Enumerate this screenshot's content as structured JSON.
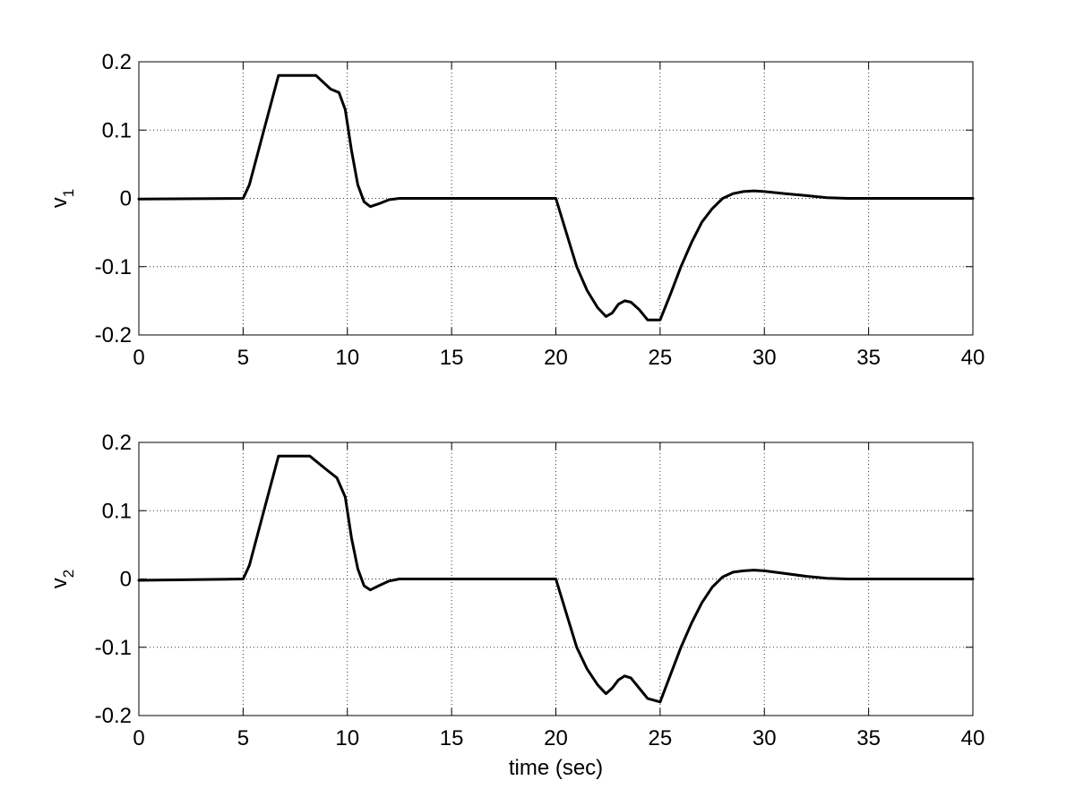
{
  "chart_data": [
    {
      "type": "line",
      "title": "",
      "xlabel": "",
      "ylabel": "v",
      "ylabel_subscript": "1",
      "xlim": [
        0,
        40
      ],
      "ylim": [
        -0.2,
        0.2
      ],
      "xticks": [
        0,
        5,
        10,
        15,
        20,
        25,
        30,
        35,
        40
      ],
      "yticks": [
        0.2,
        0.1,
        0,
        -0.1,
        -0.2
      ],
      "xtick_labels": [
        "0",
        "5",
        "10",
        "15",
        "20",
        "25",
        "30",
        "35",
        "40"
      ],
      "ytick_labels": [
        "0.2",
        "0.1",
        "0",
        "-0.1",
        "-0.2"
      ],
      "grid": true,
      "series": [
        {
          "color": "#000000",
          "x": [
            0,
            5,
            5.3,
            6,
            6.7,
            7.5,
            8.5,
            9.2,
            9.6,
            9.9,
            10.2,
            10.5,
            10.8,
            11.1,
            11.5,
            12,
            12.5,
            15,
            20,
            20.5,
            21,
            21.5,
            22,
            22.4,
            22.7,
            23,
            23.3,
            23.6,
            24,
            24.4,
            25,
            25.5,
            26,
            26.5,
            27,
            27.5,
            28,
            28.5,
            29,
            29.5,
            30,
            31,
            32,
            33,
            34,
            35,
            40
          ],
          "y": [
            -0.001,
            0,
            0.02,
            0.1,
            0.18,
            0.18,
            0.18,
            0.16,
            0.155,
            0.13,
            0.07,
            0.02,
            -0.005,
            -0.012,
            -0.008,
            -0.002,
            0,
            0,
            0,
            -0.05,
            -0.1,
            -0.135,
            -0.16,
            -0.173,
            -0.168,
            -0.155,
            -0.15,
            -0.152,
            -0.163,
            -0.178,
            -0.178,
            -0.14,
            -0.1,
            -0.065,
            -0.035,
            -0.015,
            0,
            0.007,
            0.01,
            0.011,
            0.01,
            0.007,
            0.004,
            0.001,
            0,
            0,
            0
          ]
        }
      ]
    },
    {
      "type": "line",
      "title": "",
      "xlabel": "time (sec)",
      "ylabel": "v",
      "ylabel_subscript": "2",
      "xlim": [
        0,
        40
      ],
      "ylim": [
        -0.2,
        0.2
      ],
      "xticks": [
        0,
        5,
        10,
        15,
        20,
        25,
        30,
        35,
        40
      ],
      "yticks": [
        0.2,
        0.1,
        0,
        -0.1,
        -0.2
      ],
      "xtick_labels": [
        "0",
        "5",
        "10",
        "15",
        "20",
        "25",
        "30",
        "35",
        "40"
      ],
      "ytick_labels": [
        "0.2",
        "0.1",
        "0",
        "-0.1",
        "-0.2"
      ],
      "grid": true,
      "series": [
        {
          "color": "#000000",
          "x": [
            0,
            5,
            5.3,
            6,
            6.7,
            7.5,
            8.2,
            9,
            9.5,
            9.9,
            10.2,
            10.5,
            10.8,
            11.1,
            11.5,
            12,
            12.5,
            15,
            20,
            20.5,
            21,
            21.5,
            22,
            22.4,
            22.7,
            23,
            23.3,
            23.6,
            24,
            24.4,
            25,
            25.5,
            26,
            26.5,
            27,
            27.5,
            28,
            28.5,
            29,
            29.5,
            30,
            31,
            32,
            33,
            34,
            35,
            40
          ],
          "y": [
            -0.002,
            0,
            0.02,
            0.1,
            0.18,
            0.18,
            0.18,
            0.16,
            0.148,
            0.12,
            0.06,
            0.015,
            -0.01,
            -0.016,
            -0.01,
            -0.003,
            0,
            0,
            0,
            -0.05,
            -0.1,
            -0.132,
            -0.155,
            -0.168,
            -0.16,
            -0.148,
            -0.142,
            -0.145,
            -0.16,
            -0.175,
            -0.18,
            -0.14,
            -0.1,
            -0.065,
            -0.035,
            -0.012,
            0.003,
            0.01,
            0.012,
            0.013,
            0.012,
            0.008,
            0.004,
            0.001,
            0,
            0,
            0
          ]
        }
      ]
    }
  ]
}
